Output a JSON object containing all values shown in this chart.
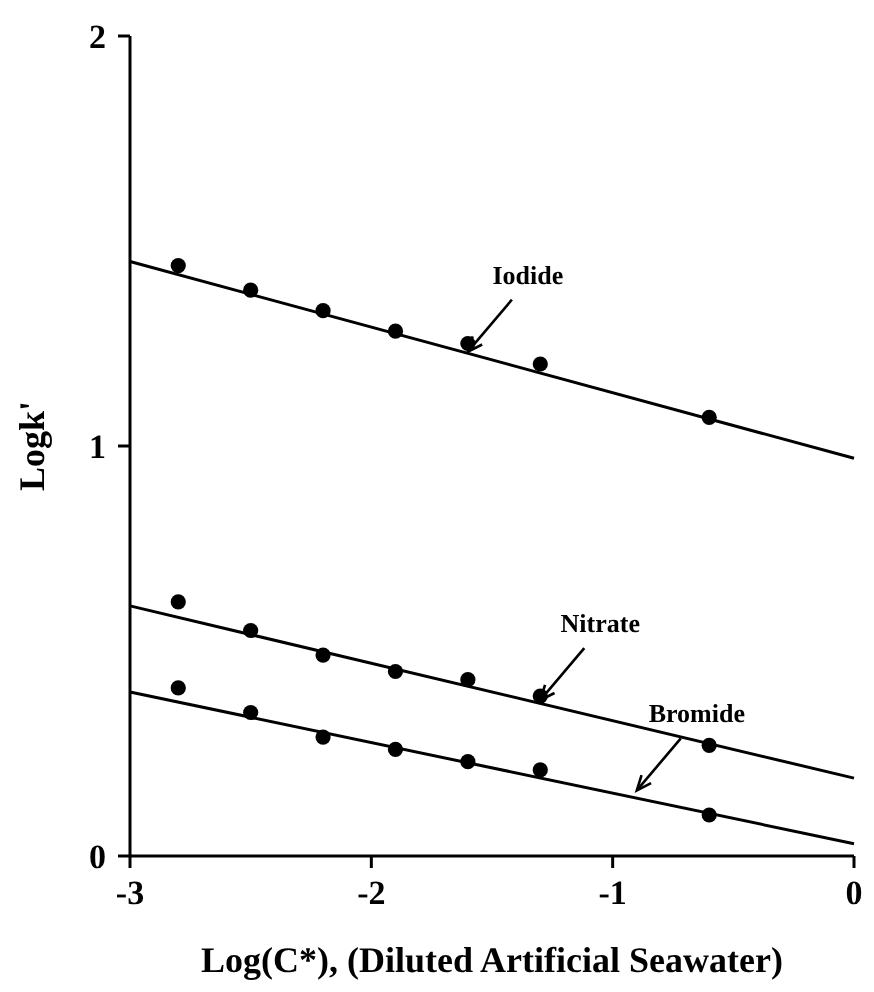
{
  "chart_data": {
    "type": "scatter",
    "xlabel": "Log(C*), (Diluted Artificial Seawater)",
    "ylabel": "Logk'",
    "xlim": [
      -3,
      0
    ],
    "ylim": [
      0,
      2
    ],
    "xticks": [
      -3,
      -2,
      -1,
      0
    ],
    "yticks": [
      0,
      1,
      2
    ],
    "grid": false,
    "series": [
      {
        "marker": "circle",
        "color": "#000000",
        "x": [
          -2.8,
          -2.5,
          -2.2,
          -1.9,
          -1.6,
          -1.3,
          -0.6
        ],
        "values": [
          1.44,
          1.38,
          1.33,
          1.28,
          1.25,
          1.2,
          1.07
        ]
      },
      {
        "marker": "circle",
        "color": "#000000",
        "x": [
          -2.8,
          -2.5,
          -2.2,
          -1.9,
          -1.6,
          -1.3,
          -0.6
        ],
        "values": [
          0.62,
          0.55,
          0.49,
          0.45,
          0.43,
          0.39,
          0.27
        ]
      },
      {
        "marker": "circle",
        "color": "#000000",
        "x": [
          -2.8,
          -2.5,
          -2.2,
          -1.9,
          -1.6,
          -1.3,
          -0.6
        ],
        "values": [
          0.41,
          0.35,
          0.29,
          0.26,
          0.23,
          0.21,
          0.1
        ]
      },
      {
        "type": "line",
        "marker": "none",
        "color": "#000000",
        "x": [
          -3,
          0
        ],
        "values": [
          1.45,
          0.97
        ]
      },
      {
        "type": "line",
        "marker": "none",
        "color": "#000000",
        "x": [
          -3,
          0
        ],
        "values": [
          0.61,
          0.19
        ]
      },
      {
        "type": "line",
        "marker": "none",
        "color": "#000000",
        "x": [
          -3,
          0
        ],
        "values": [
          0.4,
          0.03
        ]
      }
    ],
    "annotations": [
      {
        "text": "Iodide",
        "x": -1.6,
        "y": 1.23
      },
      {
        "text": "Nitrate",
        "x": -1.3,
        "y": 0.38
      },
      {
        "text": "Bromide",
        "x": -0.9,
        "y": 0.16
      }
    ]
  }
}
